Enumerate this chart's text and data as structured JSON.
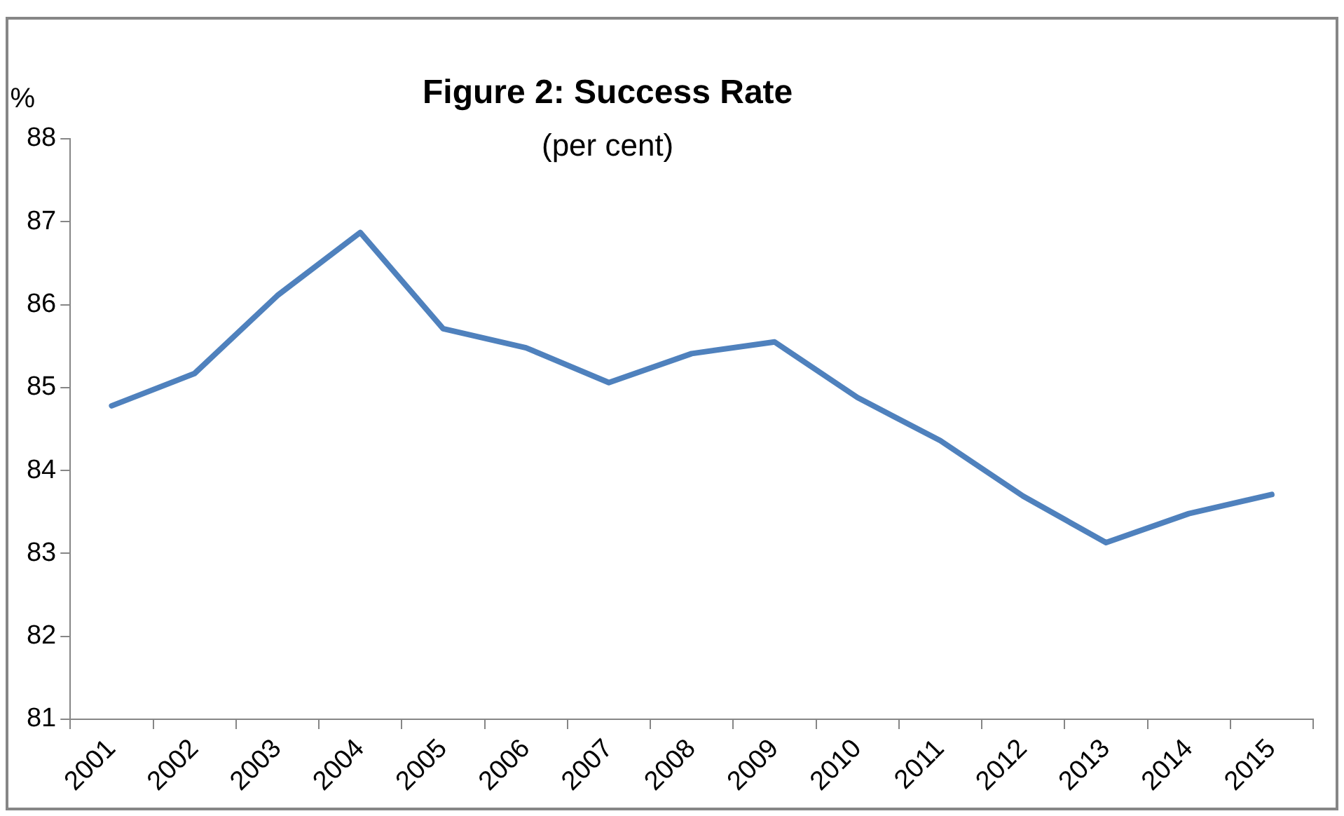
{
  "chart_data": {
    "type": "line",
    "title": "Figure 2: Success Rate",
    "subtitle": "(per cent)",
    "ylabel": "%",
    "categories": [
      "2001",
      "2002",
      "2003",
      "2004",
      "2005",
      "2006",
      "2007",
      "2008",
      "2009",
      "2010",
      "2011",
      "2012",
      "2013",
      "2014",
      "2015"
    ],
    "series": [
      {
        "color": "#4f81bd",
        "values": [
          84.78,
          85.17,
          86.11,
          86.87,
          85.71,
          85.48,
          85.06,
          85.41,
          85.55,
          84.88,
          84.36,
          83.69,
          83.13,
          83.48,
          83.71
        ]
      }
    ],
    "ylim": [
      81,
      88
    ],
    "yticks": [
      81,
      82,
      83,
      84,
      85,
      86,
      87,
      88
    ],
    "grid": false,
    "legend": false,
    "marker": "none",
    "line_style": "solid"
  }
}
